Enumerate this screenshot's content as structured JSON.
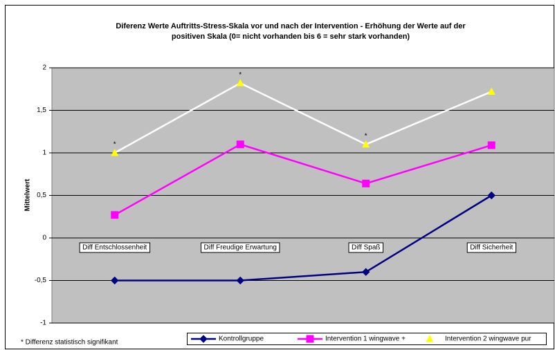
{
  "chart_data": {
    "type": "line",
    "title_lines": [
      "Diferenz Werte Auftritts-Stress-Skala vor und nach der Intervention - Erhöhung der Werte auf der",
      "positiven Skala (0= nicht vorhanden bis 6 = sehr stark vorhanden)"
    ],
    "y_label": "Mittelwert",
    "footnote": "* Differenz statistisch signifikant",
    "categories": [
      "Diff Entschlossenheit",
      "Diff Freudige Erwartung",
      "Diff Spaß",
      "Diff Sicherheit"
    ],
    "series": [
      {
        "name": "Kontrollgruppe",
        "color": "#000080",
        "marker": "diamond",
        "marker_color": "#000080",
        "values": [
          -0.5,
          -0.5,
          -0.4,
          0.5
        ]
      },
      {
        "name": "Intervention 1 wingwave +",
        "color": "#ff00ff",
        "marker": "square",
        "marker_color": "#ff00ff",
        "values": [
          0.27,
          1.1,
          0.64,
          1.09
        ]
      },
      {
        "name": "Intervention 2  wingwave pur",
        "color": "#ffffff",
        "marker": "triangle",
        "marker_color": "#ffff00",
        "values": [
          1.0,
          1.82,
          1.1,
          1.72
        ],
        "point_labels": [
          "*",
          "*",
          "*",
          null
        ]
      }
    ],
    "ylim": [
      -1,
      2
    ],
    "yticks": [
      {
        "value": -1,
        "label": "-1"
      },
      {
        "value": -0.5,
        "label": "-0,5"
      },
      0,
      {
        "value": 0.5,
        "label": "0,5"
      },
      1,
      {
        "value": 1.5,
        "label": "1,5"
      },
      2
    ],
    "grid": true,
    "plot_background": "#c0c0c0",
    "legend_position": "bottom"
  }
}
